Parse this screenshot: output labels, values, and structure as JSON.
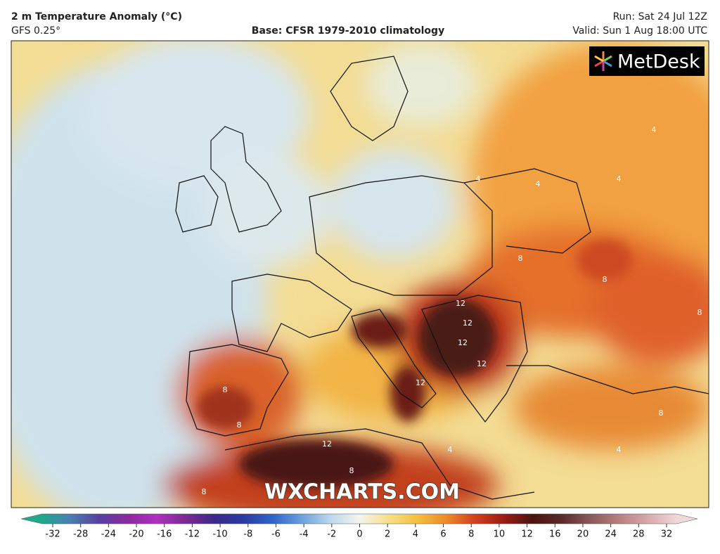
{
  "header": {
    "title": "2 m Temperature Anomaly (°C)",
    "model": "GFS 0.25°",
    "base": "Base: CFSR 1979-2010 climatology",
    "run": "Run: Sat 24 Jul 12Z",
    "valid": "Valid: Sun 1 Aug 18:00 UTC"
  },
  "logo": "MetDesk",
  "watermark": "WXCHARTS.COM",
  "contour_labels": [
    "4",
    "4",
    "4",
    "4",
    "8",
    "8",
    "8",
    "12",
    "12",
    "12",
    "12",
    "12",
    "8",
    "8",
    "12",
    "8",
    "4",
    "8",
    "4",
    "8"
  ],
  "colorbar": {
    "ticks": [
      -32,
      -28,
      -24,
      -20,
      -16,
      -12,
      -10,
      -8,
      -6,
      -4,
      -2,
      0,
      2,
      4,
      6,
      8,
      10,
      12,
      16,
      20,
      24,
      28,
      32
    ],
    "colors": [
      "#1fa88a",
      "#4a7fb0",
      "#5a3fa0",
      "#8a2aa0",
      "#b030c0",
      "#7a2a90",
      "#3a2a8a",
      "#2a3aa0",
      "#2f64c8",
      "#6aa0dc",
      "#bcd8ec",
      "#f4f4f0",
      "#f6e08a",
      "#f4c040",
      "#ee8a2a",
      "#d2401e",
      "#9a1c14",
      "#4a1410",
      "#5a2a2a",
      "#8a5a5a",
      "#b88080",
      "#d8aaaa",
      "#f0d8d8"
    ]
  }
}
